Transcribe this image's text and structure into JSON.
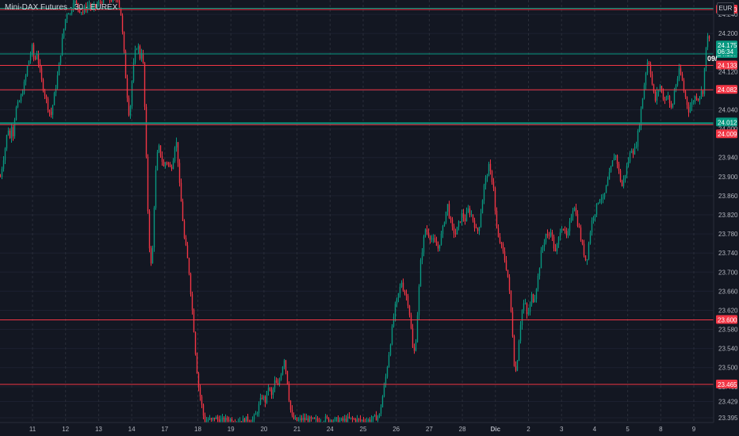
{
  "header": {
    "title": "Mini-DAX Futures · 30 · EUREX",
    "currency": "EUR"
  },
  "chart_data": {
    "type": "candlestick",
    "title": "Mini-DAX Futures · 30 · EUREX",
    "ylim": [
      23385,
      24270
    ],
    "y_ticks": [
      "24.240",
      "24.200",
      "24.160",
      "24.120",
      "24.080",
      "24.040",
      "24.000",
      "23.940",
      "23.900",
      "23.860",
      "23.820",
      "23.780",
      "23.740",
      "23.700",
      "23.660",
      "23.620",
      "23.580",
      "23.540",
      "23.500",
      "23.460",
      "23.429",
      "23.395"
    ],
    "x_labels": [
      "11",
      "12",
      "13",
      "14",
      "17",
      "18",
      "19",
      "20",
      "21",
      "24",
      "25",
      "26",
      "27",
      "28",
      "Dic",
      "2",
      "3",
      "4",
      "5",
      "8",
      "9"
    ],
    "horizontal_levels": [
      {
        "label": "24.250",
        "value": 24250,
        "color": "#f23645"
      },
      {
        "label": "24.157",
        "value": 24157,
        "color": "#089981"
      },
      {
        "label": "24.133",
        "value": 24133,
        "color": "#f23645"
      },
      {
        "label": "24.082",
        "value": 24082,
        "color": "#f23645"
      },
      {
        "label": "24.012",
        "value": 24012,
        "color": "#089981"
      },
      {
        "label": "24.009",
        "value": 24009,
        "color": "#f23645"
      },
      {
        "label": "23.600",
        "value": 23600,
        "color": "#f23645"
      },
      {
        "label": "23.465",
        "value": 23465,
        "color": "#f23645"
      }
    ],
    "current_price": {
      "label": "24.175",
      "countdown": "06:34",
      "value": 24175,
      "color": "#089981"
    },
    "annotation": "09/",
    "price_path": [
      [
        0,
        23900
      ],
      [
        3,
        23930
      ],
      [
        6,
        23960
      ],
      [
        8,
        23985
      ],
      [
        10,
        24000
      ],
      [
        12,
        23980
      ],
      [
        14,
        24010
      ],
      [
        16,
        23990
      ],
      [
        19,
        24040
      ],
      [
        22,
        24050
      ],
      [
        25,
        24060
      ],
      [
        28,
        24080
      ],
      [
        31,
        24100
      ],
      [
        34,
        24130
      ],
      [
        37,
        24150
      ],
      [
        40,
        24170
      ],
      [
        43,
        24140
      ],
      [
        46,
        24160
      ],
      [
        49,
        24130
      ],
      [
        52,
        24100
      ],
      [
        55,
        24080
      ],
      [
        58,
        24060
      ],
      [
        61,
        24040
      ],
      [
        64,
        24030
      ],
      [
        67,
        24060
      ],
      [
        70,
        24090
      ],
      [
        73,
        24120
      ],
      [
        76,
        24160
      ],
      [
        79,
        24200
      ],
      [
        82,
        24230
      ],
      [
        85,
        24250
      ],
      [
        88,
        24240
      ],
      [
        92,
        24270
      ],
      [
        96,
        24260
      ],
      [
        100,
        24250
      ],
      [
        104,
        24245
      ],
      [
        108,
        24255
      ],
      [
        112,
        24260
      ],
      [
        116,
        24250
      ],
      [
        120,
        24258
      ],
      [
        124,
        24262
      ],
      [
        128,
        24270
      ],
      [
        132,
        24275
      ],
      [
        136,
        24270
      ],
      [
        140,
        24272
      ],
      [
        144,
        24268
      ],
      [
        148,
        24275
      ],
      [
        152,
        24240
      ],
      [
        155,
        24180
      ],
      [
        158,
        24110
      ],
      [
        161,
        24050
      ],
      [
        163,
        24020
      ],
      [
        165,
        24080
      ],
      [
        167,
        24120
      ],
      [
        170,
        24160
      ],
      [
        173,
        24180
      ],
      [
        176,
        24150
      ],
      [
        179,
        24170
      ],
      [
        181,
        24100
      ],
      [
        183,
        23990
      ],
      [
        185,
        23880
      ],
      [
        187,
        23780
      ],
      [
        189,
        23730
      ],
      [
        191,
        23700
      ],
      [
        193,
        23800
      ],
      [
        195,
        23880
      ],
      [
        197,
        23940
      ],
      [
        200,
        23960
      ],
      [
        203,
        23940
      ],
      [
        206,
        23920
      ],
      [
        209,
        23935
      ],
      [
        212,
        23925
      ],
      [
        215,
        23915
      ],
      [
        218,
        23940
      ],
      [
        221,
        23980
      ],
      [
        223,
        23960
      ],
      [
        226,
        23880
      ],
      [
        229,
        23830
      ],
      [
        232,
        23770
      ],
      [
        235,
        23740
      ],
      [
        238,
        23700
      ],
      [
        241,
        23640
      ],
      [
        244,
        23580
      ],
      [
        247,
        23510
      ],
      [
        250,
        23460
      ],
      [
        253,
        23430
      ],
      [
        256,
        23400
      ],
      [
        258,
        23385
      ],
      [
        262,
        23392
      ],
      [
        266,
        23388
      ],
      [
        270,
        23395
      ],
      [
        276,
        23390
      ],
      [
        282,
        23388
      ],
      [
        288,
        23392
      ],
      [
        294,
        23388
      ],
      [
        300,
        23390
      ],
      [
        306,
        23388
      ],
      [
        312,
        23392
      ],
      [
        318,
        23390
      ],
      [
        322,
        23400
      ],
      [
        326,
        23420
      ],
      [
        330,
        23440
      ],
      [
        334,
        23430
      ],
      [
        338,
        23460
      ],
      [
        342,
        23440
      ],
      [
        346,
        23470
      ],
      [
        350,
        23460
      ],
      [
        354,
        23490
      ],
      [
        358,
        23520
      ],
      [
        362,
        23470
      ],
      [
        365,
        23420
      ],
      [
        368,
        23395
      ],
      [
        372,
        23390
      ],
      [
        376,
        23388
      ],
      [
        380,
        23392
      ],
      [
        390,
        23390
      ],
      [
        400,
        23388
      ],
      [
        410,
        23392
      ],
      [
        420,
        23390
      ],
      [
        430,
        23388
      ],
      [
        440,
        23392
      ],
      [
        450,
        23390
      ],
      [
        460,
        23388
      ],
      [
        470,
        23392
      ],
      [
        478,
        23400
      ],
      [
        482,
        23440
      ],
      [
        486,
        23480
      ],
      [
        490,
        23530
      ],
      [
        494,
        23580
      ],
      [
        497,
        23620
      ],
      [
        500,
        23640
      ],
      [
        503,
        23660
      ],
      [
        506,
        23680
      ],
      [
        509,
        23660
      ],
      [
        512,
        23650
      ],
      [
        515,
        23630
      ],
      [
        518,
        23580
      ],
      [
        521,
        23520
      ],
      [
        524,
        23560
      ],
      [
        527,
        23640
      ],
      [
        530,
        23720
      ],
      [
        533,
        23760
      ],
      [
        536,
        23790
      ],
      [
        540,
        23780
      ],
      [
        544,
        23770
      ],
      [
        548,
        23760
      ],
      [
        552,
        23750
      ],
      [
        555,
        23770
      ],
      [
        558,
        23790
      ],
      [
        561,
        23820
      ],
      [
        564,
        23840
      ],
      [
        567,
        23810
      ],
      [
        570,
        23790
      ],
      [
        574,
        23780
      ],
      [
        578,
        23800
      ],
      [
        582,
        23820
      ],
      [
        586,
        23810
      ],
      [
        590,
        23830
      ],
      [
        594,
        23820
      ],
      [
        598,
        23800
      ],
      [
        601,
        23780
      ],
      [
        604,
        23800
      ],
      [
        607,
        23840
      ],
      [
        610,
        23880
      ],
      [
        613,
        23900
      ],
      [
        616,
        23920
      ],
      [
        619,
        23900
      ],
      [
        622,
        23880
      ],
      [
        625,
        23800
      ],
      [
        628,
        23770
      ],
      [
        631,
        23760
      ],
      [
        634,
        23740
      ],
      [
        637,
        23720
      ],
      [
        640,
        23690
      ],
      [
        643,
        23640
      ],
      [
        646,
        23570
      ],
      [
        649,
        23480
      ],
      [
        652,
        23520
      ],
      [
        655,
        23580
      ],
      [
        658,
        23620
      ],
      [
        661,
        23640
      ],
      [
        664,
        23610
      ],
      [
        667,
        23620
      ],
      [
        670,
        23650
      ],
      [
        673,
        23640
      ],
      [
        676,
        23670
      ],
      [
        679,
        23700
      ],
      [
        682,
        23740
      ],
      [
        685,
        23760
      ],
      [
        688,
        23780
      ],
      [
        691,
        23770
      ],
      [
        694,
        23790
      ],
      [
        697,
        23760
      ],
      [
        700,
        23740
      ],
      [
        703,
        23760
      ],
      [
        706,
        23790
      ],
      [
        709,
        23800
      ],
      [
        712,
        23780
      ],
      [
        715,
        23770
      ],
      [
        718,
        23800
      ],
      [
        721,
        23830
      ],
      [
        724,
        23840
      ],
      [
        727,
        23810
      ],
      [
        730,
        23790
      ],
      [
        733,
        23760
      ],
      [
        736,
        23740
      ],
      [
        739,
        23720
      ],
      [
        742,
        23760
      ],
      [
        745,
        23800
      ],
      [
        748,
        23820
      ],
      [
        751,
        23830
      ],
      [
        754,
        23850
      ],
      [
        757,
        23860
      ],
      [
        760,
        23850
      ],
      [
        763,
        23870
      ],
      [
        766,
        23890
      ],
      [
        769,
        23910
      ],
      [
        772,
        23930
      ],
      [
        775,
        23950
      ],
      [
        778,
        23930
      ],
      [
        781,
        23900
      ],
      [
        784,
        23880
      ],
      [
        787,
        23900
      ],
      [
        790,
        23920
      ],
      [
        793,
        23940
      ],
      [
        796,
        23960
      ],
      [
        799,
        23950
      ],
      [
        802,
        23970
      ],
      [
        805,
        24000
      ],
      [
        808,
        24040
      ],
      [
        811,
        24080
      ],
      [
        814,
        24120
      ],
      [
        817,
        24150
      ],
      [
        820,
        24120
      ],
      [
        823,
        24080
      ],
      [
        826,
        24060
      ],
      [
        829,
        24080
      ],
      [
        832,
        24090
      ],
      [
        835,
        24070
      ],
      [
        838,
        24060
      ],
      [
        841,
        24080
      ],
      [
        844,
        24050
      ],
      [
        847,
        24040
      ],
      [
        850,
        24080
      ],
      [
        853,
        24100
      ],
      [
        856,
        24120
      ],
      [
        859,
        24110
      ],
      [
        862,
        24080
      ],
      [
        865,
        24060
      ],
      [
        868,
        24040
      ],
      [
        871,
        24050
      ],
      [
        874,
        24060
      ],
      [
        877,
        24070
      ],
      [
        880,
        24065
      ],
      [
        883,
        24075
      ],
      [
        886,
        24080
      ],
      [
        889,
        24150
      ],
      [
        892,
        24200
      ],
      [
        895,
        24175
      ]
    ]
  }
}
